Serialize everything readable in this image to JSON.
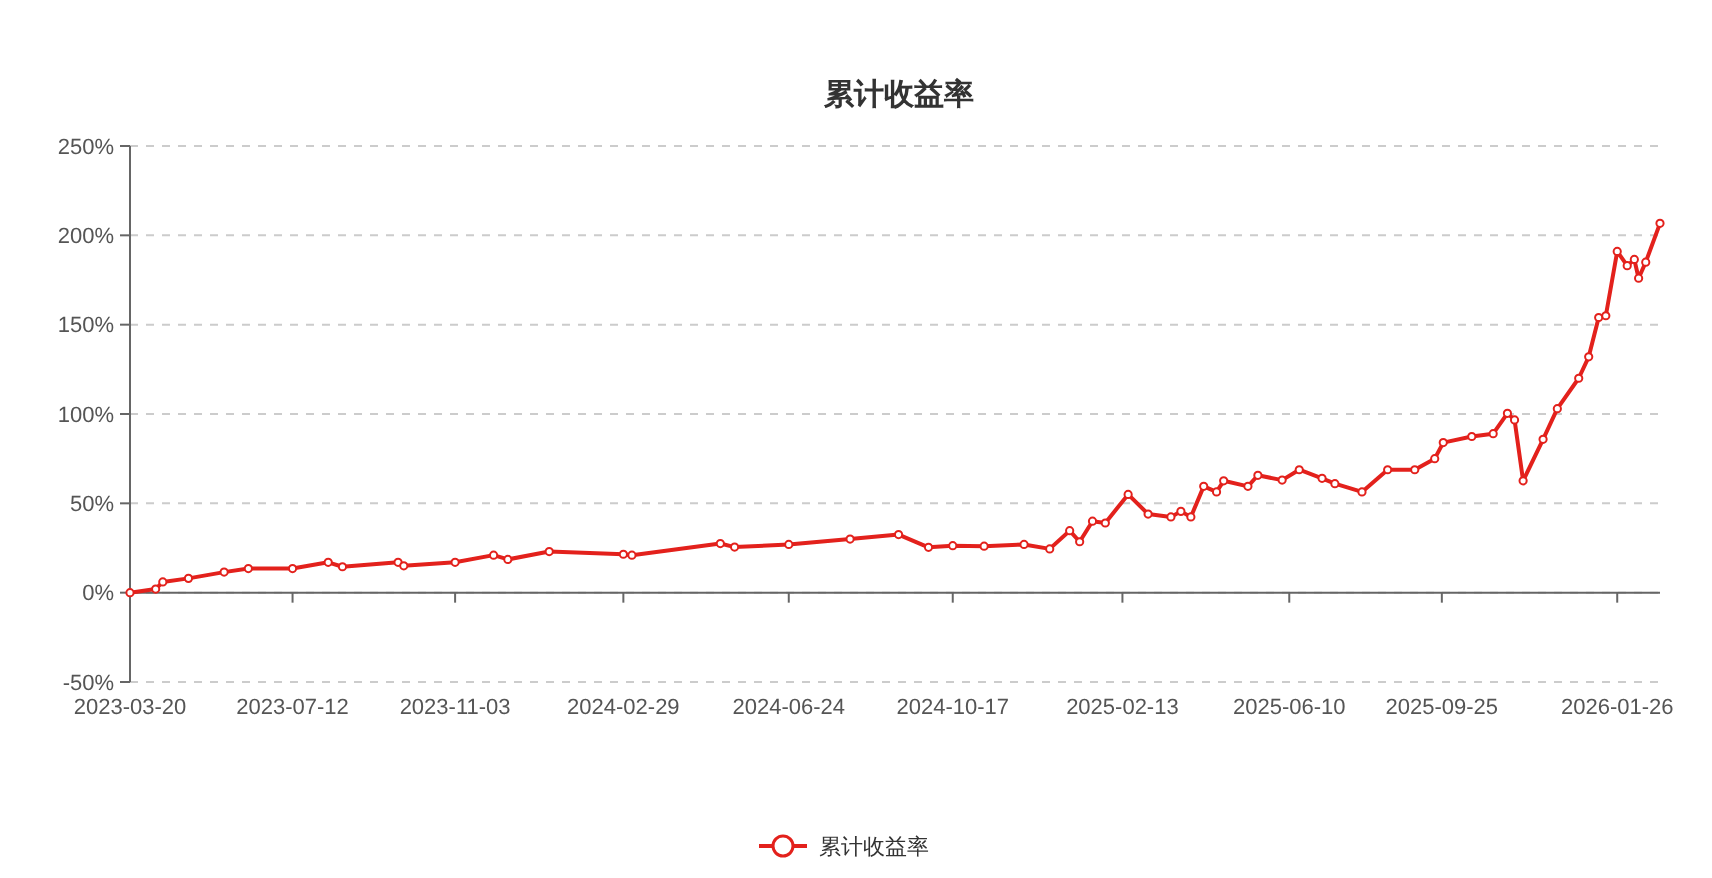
{
  "chart_data": {
    "type": "line",
    "title": "累计收益率",
    "x": [
      "2023-03-20",
      "2023-04-07",
      "2023-04-12",
      "2023-04-30",
      "2023-05-25",
      "2023-06-11",
      "2023-07-12",
      "2023-08-06",
      "2023-08-16",
      "2023-09-24",
      "2023-09-28",
      "2023-11-03",
      "2023-11-30",
      "2023-12-10",
      "2024-01-08",
      "2024-02-29",
      "2024-03-06",
      "2024-05-07",
      "2024-05-17",
      "2024-06-24",
      "2024-08-06",
      "2024-09-09",
      "2024-09-30",
      "2024-10-17",
      "2024-11-08",
      "2024-12-06",
      "2024-12-24",
      "2025-01-07",
      "2025-01-14",
      "2025-01-23",
      "2025-02-01",
      "2025-02-17",
      "2025-03-03",
      "2025-03-19",
      "2025-03-26",
      "2025-04-02",
      "2025-04-11",
      "2025-04-20",
      "2025-04-25",
      "2025-05-12",
      "2025-05-19",
      "2025-06-05",
      "2025-06-17",
      "2025-07-03",
      "2025-07-12",
      "2025-07-31",
      "2025-08-18",
      "2025-09-06",
      "2025-09-20",
      "2025-09-26",
      "2025-10-16",
      "2025-10-31",
      "2025-11-10",
      "2025-11-15",
      "2025-11-21",
      "2025-12-05",
      "2025-12-15",
      "2025-12-30",
      "2026-01-06",
      "2026-01-13",
      "2026-01-18",
      "2026-01-26",
      "2026-02-02",
      "2026-02-07",
      "2026-02-10",
      "2026-02-15",
      "2026-02-25"
    ],
    "series": [
      {
        "name": "累计收益率",
        "color": "#e3211c",
        "values": [
          0,
          2,
          6,
          8,
          11.5,
          13.5,
          13.5,
          17,
          14.5,
          17,
          15,
          17,
          21,
          18.6,
          23,
          21.5,
          21,
          27.5,
          25.5,
          27,
          30,
          32.5,
          25.4,
          26.3,
          26,
          27,
          24.5,
          34.7,
          28.5,
          40,
          39,
          55,
          44,
          42.4,
          45.5,
          42.4,
          59.5,
          56.4,
          62.6,
          59.5,
          65.7,
          63,
          68.8,
          64,
          61,
          56.4,
          68.8,
          68.8,
          75,
          84,
          87.4,
          89,
          100.4,
          96.7,
          62.6,
          85.8,
          103,
          120,
          132,
          154,
          155,
          191,
          183,
          186.5,
          176,
          185,
          206.7
        ]
      }
    ],
    "xlim": [
      "2023-03-20",
      "2026-02-25"
    ],
    "xticks": [
      "2023-03-20",
      "2023-07-12",
      "2023-11-03",
      "2024-02-29",
      "2024-06-24",
      "2024-10-17",
      "2025-02-13",
      "2025-06-10",
      "2025-09-25",
      "2026-01-26"
    ],
    "ylim": [
      -50,
      250
    ],
    "yticks": [
      {
        "value": -50,
        "label": "-50%"
      },
      {
        "value": 0,
        "label": "0%"
      },
      {
        "value": 50,
        "label": "50%"
      },
      {
        "value": 100,
        "label": "100%"
      },
      {
        "value": 150,
        "label": "150%"
      },
      {
        "value": 200,
        "label": "200%"
      },
      {
        "value": 250,
        "label": "250%"
      }
    ],
    "grid": "y",
    "legend": "bottom",
    "marker": "circle",
    "line_style": "solid"
  }
}
